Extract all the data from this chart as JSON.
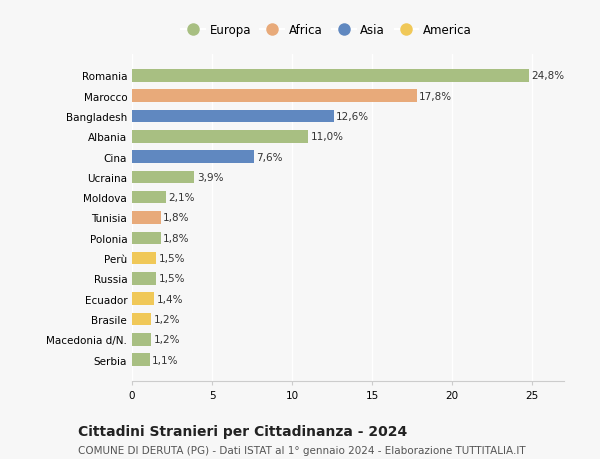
{
  "countries": [
    "Serbia",
    "Macedonia d/N.",
    "Brasile",
    "Ecuador",
    "Russia",
    "Perù",
    "Polonia",
    "Tunisia",
    "Moldova",
    "Ucraina",
    "Cina",
    "Albania",
    "Bangladesh",
    "Marocco",
    "Romania"
  ],
  "values": [
    1.1,
    1.2,
    1.2,
    1.4,
    1.5,
    1.5,
    1.8,
    1.8,
    2.1,
    3.9,
    7.6,
    11.0,
    12.6,
    17.8,
    24.8
  ],
  "labels": [
    "1,1%",
    "1,2%",
    "1,2%",
    "1,4%",
    "1,5%",
    "1,5%",
    "1,8%",
    "1,8%",
    "2,1%",
    "3,9%",
    "7,6%",
    "11,0%",
    "12,6%",
    "17,8%",
    "24,8%"
  ],
  "continents": [
    "Europa",
    "Europa",
    "America",
    "America",
    "Europa",
    "America",
    "Europa",
    "Africa",
    "Europa",
    "Europa",
    "Asia",
    "Europa",
    "Asia",
    "Africa",
    "Europa"
  ],
  "continent_colors": {
    "Europa": "#a8bf82",
    "Africa": "#e8aa7a",
    "Asia": "#6088c0",
    "America": "#f0c858"
  },
  "legend_order": [
    "Europa",
    "Africa",
    "Asia",
    "America"
  ],
  "title": "Cittadini Stranieri per Cittadinanza - 2024",
  "subtitle": "COMUNE DI DERUTA (PG) - Dati ISTAT al 1° gennaio 2024 - Elaborazione TUTTITALIA.IT",
  "xlim": [
    0,
    27
  ],
  "xticks": [
    0,
    5,
    10,
    15,
    20,
    25
  ],
  "background_color": "#f7f7f7",
  "grid_color": "#ffffff",
  "bar_height": 0.62,
  "title_fontsize": 10,
  "subtitle_fontsize": 7.5,
  "bar_label_fontsize": 7.5,
  "tick_fontsize": 7.5,
  "legend_fontsize": 8.5
}
